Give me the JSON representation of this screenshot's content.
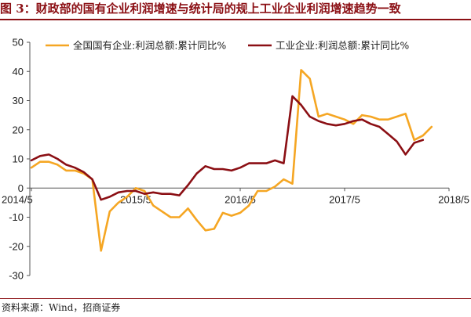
{
  "header": {
    "title": "图 3：财政部的国有企业利润增速与统计局的规上工业企业利润增速趋势一致"
  },
  "footer": {
    "source": "资料来源：Wind，招商证券"
  },
  "colors": {
    "soe": "#F5A623",
    "industrial": "#8B0F14",
    "accent": "#8B0F14"
  },
  "chart_data": {
    "type": "line",
    "title": "",
    "xlabel": "",
    "ylabel": "",
    "ylim": [
      -30,
      50
    ],
    "yticks": [
      -30,
      -20,
      -10,
      0,
      10,
      20,
      30,
      40,
      50
    ],
    "xticks": [
      "2014/5",
      "2015/5",
      "2016/5",
      "2017/5",
      "2018/5"
    ],
    "x_start": "2014/5",
    "grid": false,
    "legend": "top",
    "series": [
      {
        "name": "全国国有企业:利润总额:累计同比%",
        "color": "#F5A623",
        "values": [
          7,
          9,
          9,
          8,
          6,
          6,
          5,
          3,
          -21.5,
          -8,
          -5,
          -3,
          0,
          -1,
          -6,
          -8,
          -10,
          -10,
          -7,
          -11,
          -14.5,
          -14,
          -8.5,
          -9.5,
          -8.5,
          -6,
          -1,
          -1,
          0.5,
          3,
          1.5,
          40.5,
          37.5,
          24.5,
          25.5,
          24.5,
          23.5,
          22,
          25,
          24.5,
          23.5,
          23.5,
          24.5,
          25.5,
          16.5,
          18,
          21
        ]
      },
      {
        "name": "工业企业:利润总额:累计同比%",
        "color": "#8B0F14",
        "values": [
          9.5,
          11,
          11.5,
          10,
          8,
          7,
          5.5,
          3,
          -4,
          -3,
          -1.5,
          -1,
          -1,
          -2,
          -1.5,
          -2,
          -2,
          -2.5,
          1,
          5,
          7.5,
          6.5,
          6.5,
          6,
          7,
          8.5,
          8.5,
          8.5,
          9.5,
          8.5,
          31.5,
          28.5,
          24.5,
          23,
          22,
          21.5,
          22,
          23,
          23.5,
          22,
          21,
          18.5,
          16,
          11.5,
          15.5,
          16.5
        ]
      }
    ]
  }
}
